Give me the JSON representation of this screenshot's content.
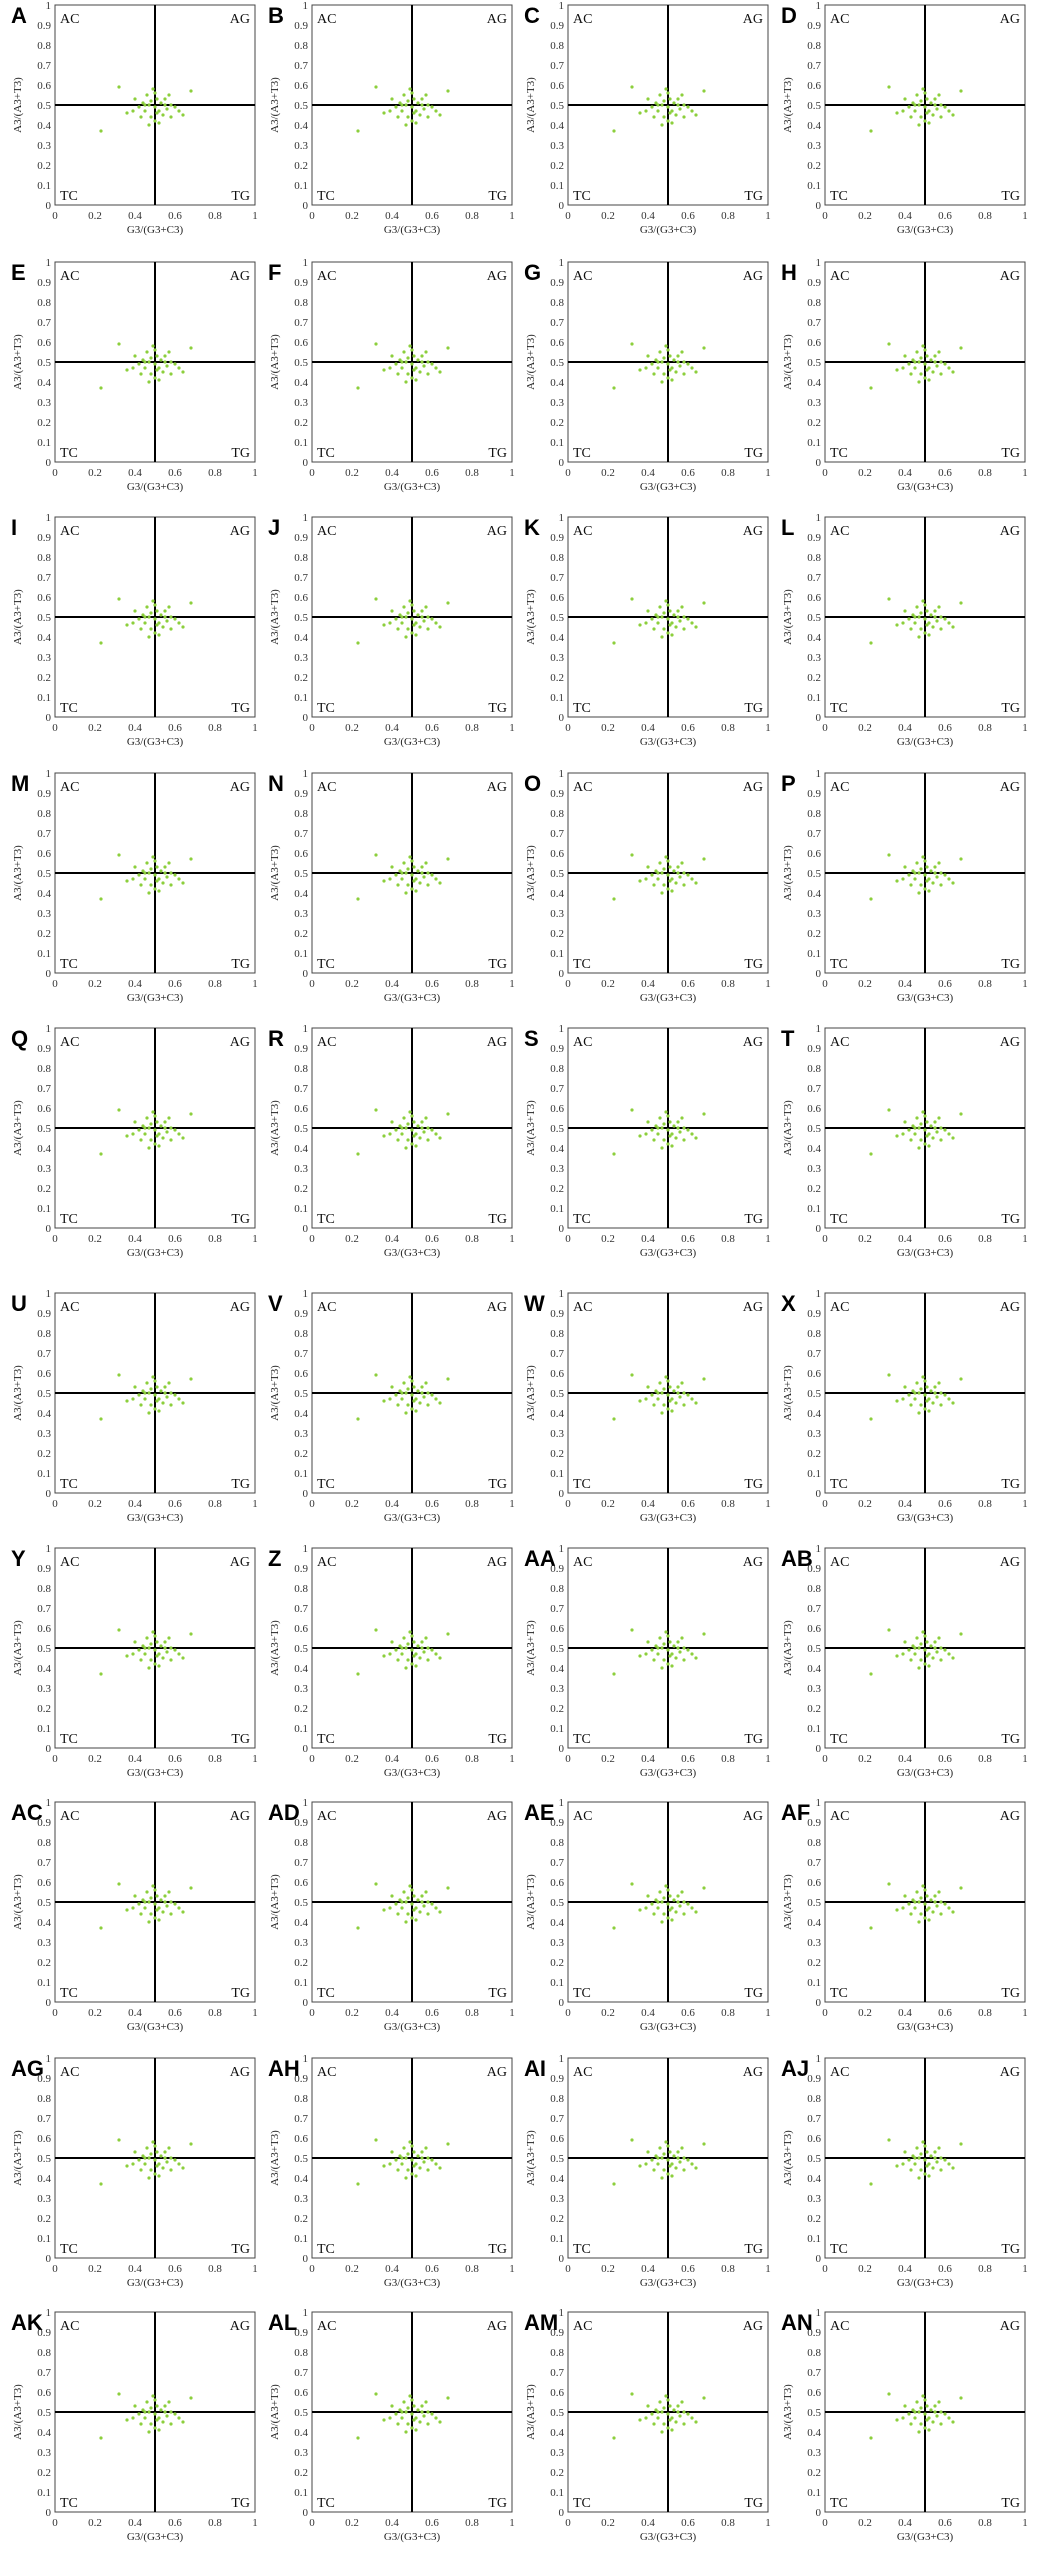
{
  "chart_data": {
    "type": "scatter",
    "panels": [
      "A",
      "B",
      "C",
      "D",
      "E",
      "F",
      "G",
      "H",
      "I",
      "J",
      "K",
      "L",
      "M",
      "N",
      "O",
      "P",
      "Q",
      "R",
      "S",
      "T",
      "U",
      "V",
      "W",
      "X",
      "Y",
      "Z",
      "AA",
      "AB",
      "AC",
      "AD",
      "AE",
      "AF",
      "AG",
      "AH",
      "AI",
      "AJ",
      "AK",
      "AL",
      "AM",
      "AN"
    ],
    "xlabel": "G3/(G3+C3)",
    "ylabel": "A3/(A3+T3)",
    "xlim": [
      0,
      1
    ],
    "ylim": [
      0,
      1
    ],
    "x_ticks": [
      "0",
      "0.2",
      "0.4",
      "0.6",
      "0.8",
      "1"
    ],
    "y_ticks": [
      "0",
      "0.1",
      "0.2",
      "0.3",
      "0.4",
      "0.5",
      "0.6",
      "0.7",
      "0.8",
      "0.9",
      "1"
    ],
    "reference_lines": {
      "x": 0.5,
      "y": 0.5
    },
    "quadrants": {
      "top_left": "AC",
      "top_right": "AG",
      "bottom_left": "TC",
      "bottom_right": "TG"
    },
    "point_color": "#8ccf3c",
    "grid": false,
    "points": [
      [
        0.32,
        0.59
      ],
      [
        0.23,
        0.37
      ],
      [
        0.36,
        0.46
      ],
      [
        0.4,
        0.53
      ],
      [
        0.42,
        0.49
      ],
      [
        0.44,
        0.51
      ],
      [
        0.45,
        0.47
      ],
      [
        0.46,
        0.55
      ],
      [
        0.47,
        0.5
      ],
      [
        0.48,
        0.44
      ],
      [
        0.49,
        0.58
      ],
      [
        0.5,
        0.49
      ],
      [
        0.5,
        0.42
      ],
      [
        0.51,
        0.53
      ],
      [
        0.52,
        0.47
      ],
      [
        0.53,
        0.51
      ],
      [
        0.54,
        0.45
      ],
      [
        0.55,
        0.5
      ],
      [
        0.56,
        0.48
      ],
      [
        0.57,
        0.55
      ],
      [
        0.58,
        0.44
      ],
      [
        0.6,
        0.49
      ],
      [
        0.62,
        0.47
      ],
      [
        0.68,
        0.57
      ],
      [
        0.43,
        0.44
      ],
      [
        0.47,
        0.4
      ],
      [
        0.52,
        0.41
      ],
      [
        0.58,
        0.5
      ],
      [
        0.64,
        0.45
      ],
      [
        0.39,
        0.47
      ],
      [
        0.48,
        0.52
      ],
      [
        0.51,
        0.46
      ],
      [
        0.55,
        0.53
      ],
      [
        0.45,
        0.5
      ],
      [
        0.5,
        0.56
      ]
    ]
  }
}
